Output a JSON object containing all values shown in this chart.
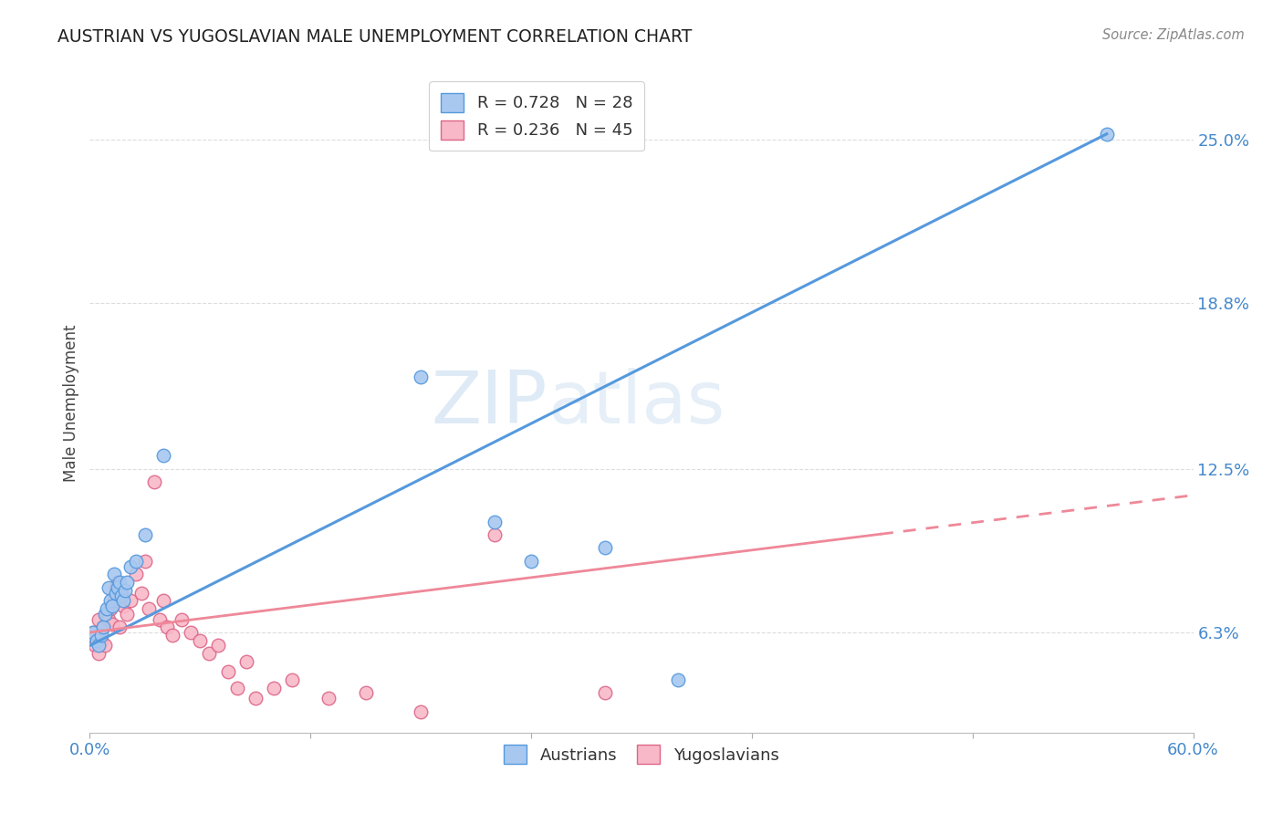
{
  "title": "AUSTRIAN VS YUGOSLAVIAN MALE UNEMPLOYMENT CORRELATION CHART",
  "source": "Source: ZipAtlas.com",
  "ylabel": "Male Unemployment",
  "right_yticks": [
    "25.0%",
    "18.8%",
    "12.5%",
    "6.3%"
  ],
  "right_ytick_vals": [
    0.25,
    0.188,
    0.125,
    0.063
  ],
  "austrian_color": "#a8c8f0",
  "austrian_edge": "#5599dd",
  "yugoslavian_color": "#f8b8c8",
  "yugoslavian_edge": "#dd6688",
  "line_austrian_color": "#5599dd",
  "line_yugoslavian_color": "#ee8899",
  "background_color": "#ffffff",
  "grid_color": "#dddddd",
  "xlim": [
    0.0,
    0.6
  ],
  "ylim": [
    0.025,
    0.275
  ],
  "austrian_line_x": [
    0.0,
    0.553
  ],
  "austrian_line_y": [
    0.058,
    0.252
  ],
  "yugoslavian_line_x": [
    0.0,
    0.6
  ],
  "yugoslavian_line_y": [
    0.063,
    0.115
  ],
  "austrian_scatter_x": [
    0.002,
    0.004,
    0.005,
    0.006,
    0.007,
    0.008,
    0.009,
    0.01,
    0.011,
    0.012,
    0.013,
    0.014,
    0.015,
    0.016,
    0.017,
    0.018,
    0.019,
    0.02,
    0.022,
    0.025,
    0.03,
    0.04,
    0.18,
    0.22,
    0.24,
    0.28,
    0.32,
    0.553
  ],
  "austrian_scatter_y": [
    0.063,
    0.06,
    0.058,
    0.062,
    0.065,
    0.07,
    0.072,
    0.08,
    0.075,
    0.073,
    0.085,
    0.078,
    0.08,
    0.082,
    0.077,
    0.075,
    0.079,
    0.082,
    0.088,
    0.09,
    0.1,
    0.13,
    0.16,
    0.105,
    0.09,
    0.095,
    0.045,
    0.252
  ],
  "yugoslavian_scatter_x": [
    0.002,
    0.003,
    0.004,
    0.005,
    0.005,
    0.006,
    0.007,
    0.008,
    0.009,
    0.01,
    0.011,
    0.012,
    0.013,
    0.014,
    0.015,
    0.016,
    0.017,
    0.018,
    0.02,
    0.022,
    0.025,
    0.028,
    0.03,
    0.032,
    0.035,
    0.038,
    0.04,
    0.042,
    0.045,
    0.05,
    0.055,
    0.06,
    0.065,
    0.07,
    0.075,
    0.08,
    0.085,
    0.09,
    0.1,
    0.11,
    0.13,
    0.15,
    0.18,
    0.22,
    0.28
  ],
  "yugoslavian_scatter_y": [
    0.063,
    0.058,
    0.06,
    0.055,
    0.068,
    0.06,
    0.065,
    0.058,
    0.07,
    0.068,
    0.072,
    0.066,
    0.075,
    0.08,
    0.082,
    0.065,
    0.078,
    0.073,
    0.07,
    0.075,
    0.085,
    0.078,
    0.09,
    0.072,
    0.12,
    0.068,
    0.075,
    0.065,
    0.062,
    0.068,
    0.063,
    0.06,
    0.055,
    0.058,
    0.048,
    0.042,
    0.052,
    0.038,
    0.042,
    0.045,
    0.038,
    0.04,
    0.033,
    0.1,
    0.04
  ],
  "watermark": "ZIPatlas",
  "watermark_zip": "ZIP",
  "watermark_atlas": "atlas"
}
